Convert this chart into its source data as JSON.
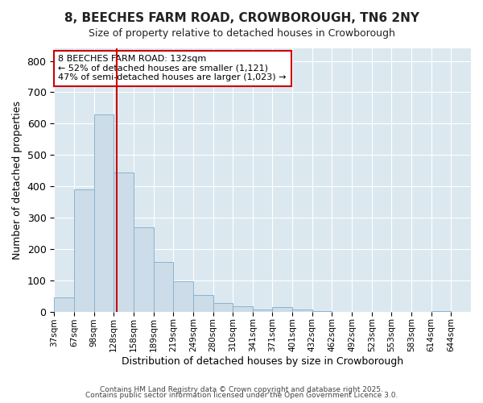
{
  "title1": "8, BEECHES FARM ROAD, CROWBOROUGH, TN6 2NY",
  "title2": "Size of property relative to detached houses in Crowborough",
  "xlabel": "Distribution of detached houses by size in Crowborough",
  "ylabel": "Number of detached properties",
  "bar_labels": [
    "37sqm",
    "67sqm",
    "98sqm",
    "128sqm",
    "158sqm",
    "189sqm",
    "219sqm",
    "249sqm",
    "280sqm",
    "310sqm",
    "341sqm",
    "371sqm",
    "401sqm",
    "432sqm",
    "462sqm",
    "492sqm",
    "523sqm",
    "553sqm",
    "583sqm",
    "614sqm",
    "644sqm"
  ],
  "bar_values": [
    45,
    390,
    630,
    445,
    270,
    158,
    98,
    53,
    28,
    18,
    8,
    15,
    8,
    3,
    0,
    0,
    0,
    0,
    0,
    1,
    0
  ],
  "bar_color": "#ccdce8",
  "bar_edgecolor": "#8ab4cf",
  "plot_bg_color": "#dce8f0",
  "fig_bg_color": "#ffffff",
  "grid_color": "#ffffff",
  "vline_color": "#cc0000",
  "ylim": [
    0,
    840
  ],
  "yticks": [
    0,
    100,
    200,
    300,
    400,
    500,
    600,
    700,
    800
  ],
  "annotation_text": "8 BEECHES FARM ROAD: 132sqm\n← 52% of detached houses are smaller (1,121)\n47% of semi-detached houses are larger (1,023) →",
  "annotation_box_facecolor": "#ffffff",
  "annotation_box_edgecolor": "#cc0000",
  "title1_fontsize": 11,
  "title2_fontsize": 9,
  "footnote1": "Contains HM Land Registry data © Crown copyright and database right 2025.",
  "footnote2": "Contains public sector information licensed under the Open Government Licence 3.0."
}
